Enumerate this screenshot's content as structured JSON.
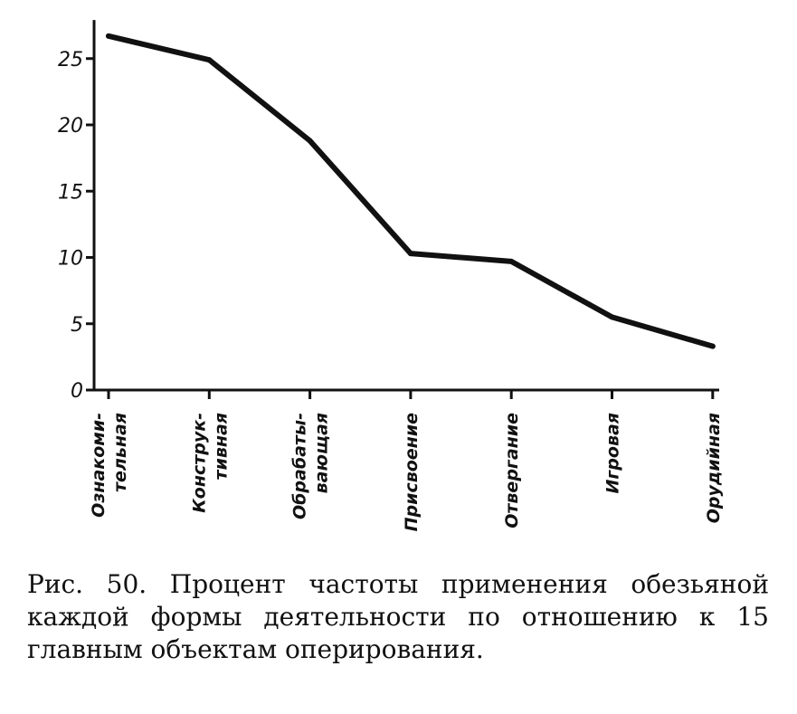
{
  "chart_data": {
    "type": "line",
    "categories": [
      [
        "Ознакоми-",
        "тельная"
      ],
      [
        "Конструк-",
        "тивная"
      ],
      [
        "Обрабаты-",
        "вающая"
      ],
      [
        "Присвоение"
      ],
      [
        "Отвергание"
      ],
      [
        "Игровая"
      ],
      [
        "Орудийная"
      ]
    ],
    "values": [
      26.7,
      24.9,
      18.8,
      10.3,
      9.7,
      5.5,
      3.3
    ],
    "yticks": [
      0,
      5,
      10,
      15,
      20,
      25
    ],
    "ylim": [
      0,
      27.5
    ],
    "grid": false,
    "line_color": "#111111"
  },
  "caption": "Рис. 50. Процент частоты применения обезьяной каждой формы деятельности по отношению к 15 главным объектам оперирования."
}
